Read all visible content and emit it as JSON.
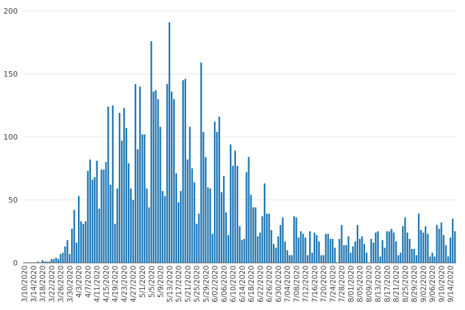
{
  "chart_data": {
    "type": "bar",
    "title": "",
    "xlabel": "",
    "ylabel": "",
    "ylim": [
      0,
      200
    ],
    "ytick_labels": [
      "0",
      "50",
      "100",
      "150",
      "200"
    ],
    "grid": true,
    "bar_color": "#1f77b4",
    "grid_color": "#e6e6e6",
    "start_date": "2020-03-10",
    "xtick_labels": [
      "3/10/2020",
      "3/14/2020",
      "3/18/2020",
      "3/22/2020",
      "3/26/2020",
      "3/30/2020",
      "4/3/2020",
      "4/7/2020",
      "4/11/2020",
      "4/15/2020",
      "4/19/2020",
      "4/23/2020",
      "4/27/2020",
      "5/1/2020",
      "5/5/2020",
      "5/9/2020",
      "5/13/2020",
      "5/17/2020",
      "5/21/2020",
      "5/25/2020",
      "5/29/2020",
      "6/02/2020",
      "6/06/2020",
      "6/10/2020",
      "6/14/2020",
      "6/18/2020",
      "6/22/2020",
      "6/26/2020",
      "6/30/2020",
      "7/04/2020",
      "7/08/2020",
      "7/12/2020",
      "7/16/2020",
      "7/20/2020",
      "7/24/2020",
      "7/28/2020",
      "8/01/2020",
      "8/05/2020",
      "8/09/2020",
      "8/13/2020",
      "8/17/2020",
      "8/21/2020",
      "8/25/2020",
      "8/29/2020",
      "9/02/2020",
      "9/06/2020",
      "9/10/2020",
      "9/14/2020"
    ],
    "values": [
      0,
      0,
      0,
      0,
      0,
      0,
      1,
      0,
      2,
      1,
      1,
      1,
      3,
      3,
      4,
      3,
      7,
      8,
      13,
      18,
      7,
      27,
      42,
      16,
      53,
      33,
      31,
      33,
      73,
      82,
      66,
      68,
      81,
      43,
      74,
      74,
      80,
      124,
      62,
      125,
      31,
      59,
      119,
      97,
      123,
      107,
      79,
      59,
      50,
      142,
      90,
      140,
      102,
      102,
      59,
      44,
      176,
      136,
      137,
      130,
      108,
      57,
      53,
      142,
      191,
      136,
      130,
      71,
      48,
      57,
      145,
      146,
      82,
      108,
      75,
      64,
      31,
      39,
      159,
      104,
      84,
      60,
      59,
      23,
      112,
      104,
      116,
      56,
      69,
      40,
      22,
      94,
      77,
      89,
      77,
      29,
      18,
      19,
      72,
      84,
      54,
      44,
      44,
      21,
      24,
      37,
      63,
      39,
      39,
      26,
      15,
      12,
      21,
      30,
      36,
      17,
      10,
      6,
      6,
      37,
      36,
      20,
      25,
      23,
      20,
      6,
      25,
      8,
      24,
      22,
      17,
      6,
      6,
      23,
      23,
      19,
      19,
      12,
      0,
      19,
      30,
      14,
      14,
      21,
      8,
      13,
      17,
      30,
      19,
      21,
      15,
      8,
      0,
      19,
      16,
      24,
      25,
      5,
      18,
      12,
      25,
      25,
      27,
      24,
      17,
      6,
      8,
      29,
      36,
      24,
      19,
      11,
      11,
      6,
      39,
      26,
      24,
      29,
      23,
      5,
      8,
      5,
      30,
      27,
      32,
      22,
      14,
      5,
      20,
      35,
      25
    ]
  }
}
